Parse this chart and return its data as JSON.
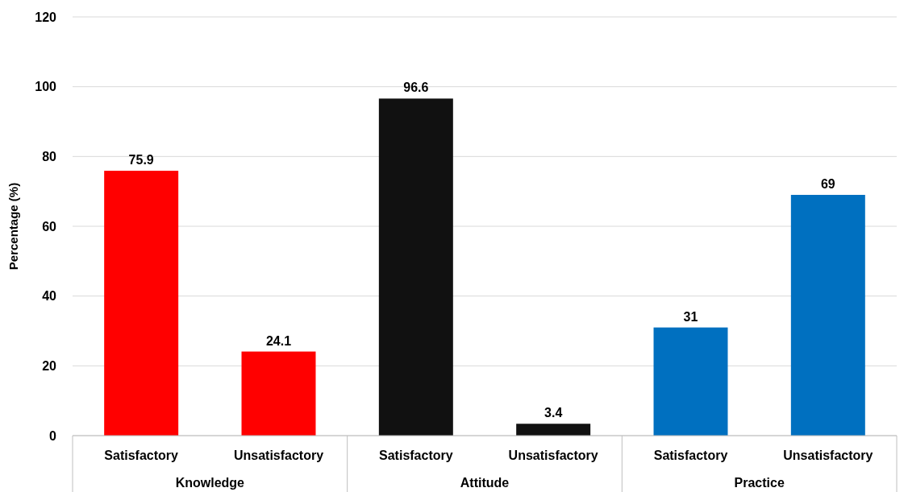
{
  "chart_data": {
    "type": "bar",
    "ylabel": "Percentage (%)",
    "categories": [
      "Satisfactory",
      "Unsatisfactory",
      "Satisfactory",
      "Unsatisfactory",
      "Satisfactory",
      "Unsatisfactory"
    ],
    "values": [
      75.9,
      24.1,
      96.6,
      3.4,
      31,
      69
    ],
    "colors": [
      "#ff0000",
      "#ff0000",
      "#111111",
      "#111111",
      "#0070c0",
      "#0070c0"
    ],
    "annotations": [
      "Knowledge",
      "Attitude",
      "Practice"
    ],
    "ylim": [
      0,
      120
    ],
    "yticks": [
      0,
      20,
      40,
      60,
      80,
      100,
      120
    ],
    "grid": "y",
    "data_labels": true
  }
}
